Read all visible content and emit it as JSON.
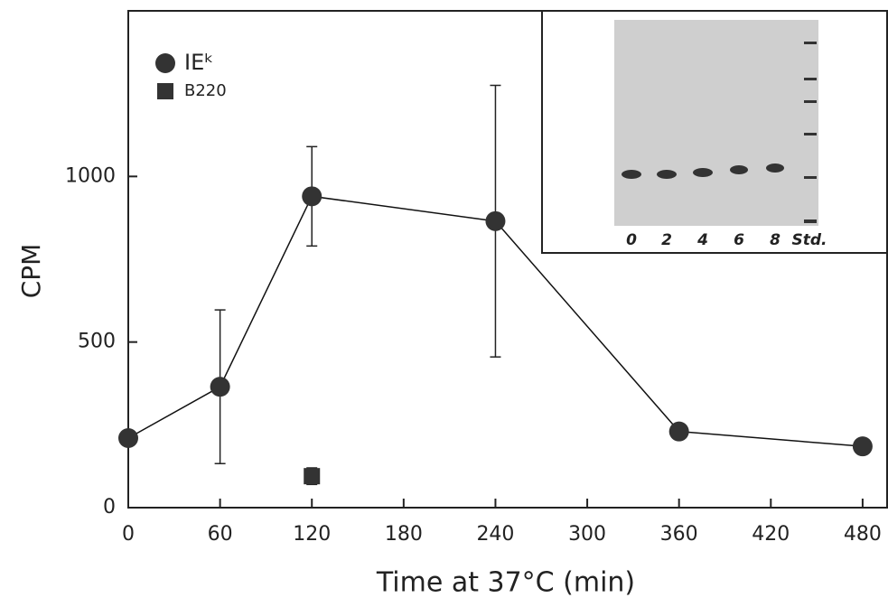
{
  "chart_data": {
    "type": "line",
    "x_label": "Time at 37°C (min)",
    "y_label": "CPM",
    "xlim": [
      0,
      496
    ],
    "ylim": [
      0,
      1500
    ],
    "xticks": [
      0,
      60,
      120,
      180,
      240,
      300,
      360,
      420,
      480
    ],
    "yticks": [
      0,
      500,
      1000
    ],
    "series": [
      {
        "name": "IEᵏ",
        "marker": "circle",
        "color": "#333333",
        "connected": true,
        "x": [
          0,
          60,
          120,
          240,
          360,
          480
        ],
        "values": [
          210,
          365,
          940,
          865,
          230,
          185
        ],
        "errors": [
          null,
          232,
          150,
          410,
          null,
          null
        ]
      },
      {
        "name": "B220",
        "marker": "square",
        "color": "#333333",
        "connected": false,
        "x": [
          120
        ],
        "values": [
          95
        ],
        "errors": [
          25
        ]
      }
    ],
    "inset": {
      "lane_labels": [
        "0",
        "2",
        "4",
        "6",
        "8",
        "Std."
      ]
    }
  }
}
